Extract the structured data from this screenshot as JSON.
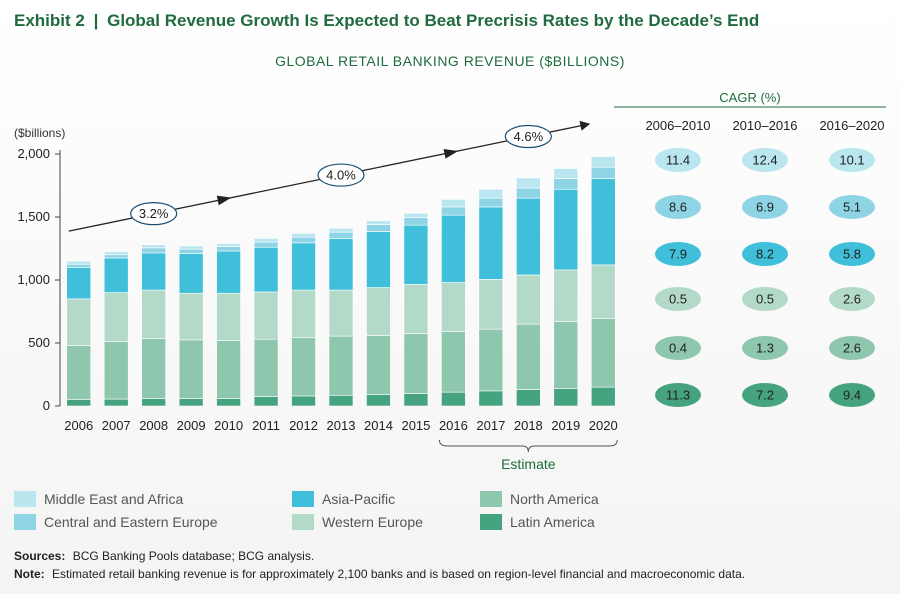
{
  "exhibit": {
    "label": "Exhibit 2",
    "separator": "|",
    "title": "Global Revenue Growth Is Expected to Beat Precrisis Rates by the Decade’s End"
  },
  "chart_title": "GLOBAL RETAIL BANKING REVENUE ($BILLIONS)",
  "colors": {
    "green_title": "#1f6b3d",
    "middle_east_africa": "#b9e6ef",
    "central_eastern_europe": "#8fd4e4",
    "asia_pacific": "#3fbfd9",
    "western_europe": "#b3d9c8",
    "north_america": "#8ec7ae",
    "latin_america": "#46a37f"
  },
  "chart_data": {
    "type": "bar",
    "stacked": true,
    "ylabel": "($billions)",
    "ylim": [
      0,
      2000
    ],
    "yticks": [
      0,
      500,
      1000,
      1500,
      2000
    ],
    "ytick_labels": [
      "0",
      "500",
      "1,000",
      "1,500",
      "2,000"
    ],
    "categories": [
      "2006",
      "2007",
      "2008",
      "2009",
      "2010",
      "2011",
      "2012",
      "2013",
      "2014",
      "2015",
      "2016",
      "2017",
      "2018",
      "2019",
      "2020"
    ],
    "estimate_label": "Estimate",
    "estimate_range": [
      "2016",
      "2020"
    ],
    "series": [
      {
        "name": "Latin America",
        "color_key": "latin_america",
        "values": [
          50,
          55,
          60,
          60,
          60,
          75,
          80,
          85,
          90,
          100,
          110,
          120,
          130,
          140,
          150
        ]
      },
      {
        "name": "North America",
        "color_key": "north_america",
        "values": [
          430,
          455,
          475,
          465,
          460,
          455,
          465,
          470,
          470,
          475,
          480,
          490,
          520,
          530,
          545
        ]
      },
      {
        "name": "Western Europe",
        "color_key": "western_europe",
        "values": [
          370,
          390,
          385,
          370,
          375,
          375,
          375,
          365,
          380,
          390,
          390,
          395,
          390,
          410,
          425
        ]
      },
      {
        "name": "Asia-Pacific",
        "color_key": "asia_pacific",
        "values": [
          250,
          275,
          295,
          315,
          335,
          355,
          375,
          410,
          445,
          470,
          535,
          575,
          610,
          640,
          685
        ]
      },
      {
        "name": "Central and Eastern Europe",
        "color_key": "central_eastern_europe",
        "values": [
          25,
          25,
          40,
          35,
          35,
          40,
          45,
          50,
          55,
          60,
          65,
          70,
          80,
          85,
          90
        ]
      },
      {
        "name": "Middle East and Africa",
        "color_key": "middle_east_africa",
        "values": [
          25,
          25,
          25,
          25,
          25,
          30,
          30,
          30,
          30,
          35,
          60,
          70,
          80,
          80,
          85
        ]
      }
    ],
    "trend_labels": [
      {
        "label": "3.2%",
        "from": "2006",
        "to": "2010"
      },
      {
        "label": "4.0%",
        "from": "2010",
        "to": "2016"
      },
      {
        "label": "4.6%",
        "from": "2016",
        "to": "2020"
      }
    ],
    "cagr_table": {
      "title": "CAGR (%)",
      "columns": [
        "2006–2010",
        "2010–2016",
        "2016–2020"
      ],
      "rows": [
        {
          "series": "Middle East and Africa",
          "color_key": "middle_east_africa",
          "values": [
            "11.4",
            "12.4",
            "10.1"
          ]
        },
        {
          "series": "Central and Eastern Europe",
          "color_key": "central_eastern_europe",
          "values": [
            "8.6",
            "6.9",
            "5.1"
          ]
        },
        {
          "series": "Asia-Pacific",
          "color_key": "asia_pacific",
          "values": [
            "7.9",
            "8.2",
            "5.8"
          ]
        },
        {
          "series": "Western Europe",
          "color_key": "western_europe",
          "values": [
            "0.5",
            "0.5",
            "2.6"
          ]
        },
        {
          "series": "North America",
          "color_key": "north_america",
          "values": [
            "0.4",
            "1.3",
            "2.6"
          ]
        },
        {
          "series": "Latin America",
          "color_key": "latin_america",
          "values": [
            "11.3",
            "7.2",
            "9.4"
          ]
        }
      ]
    },
    "legend": [
      {
        "name": "Middle East and Africa",
        "color_key": "middle_east_africa"
      },
      {
        "name": "Central and Eastern Europe",
        "color_key": "central_eastern_europe"
      },
      {
        "name": "Asia-Pacific",
        "color_key": "asia_pacific"
      },
      {
        "name": "Western Europe",
        "color_key": "western_europe"
      },
      {
        "name": "North America",
        "color_key": "north_america"
      },
      {
        "name": "Latin America",
        "color_key": "latin_america"
      }
    ]
  },
  "footer": {
    "sources_label": "Sources:",
    "sources_text": "BCG Banking Pools database; BCG analysis.",
    "note_label": "Note:",
    "note_text": "Estimated retail banking revenue is for approximately 2,100 banks and is based on region-level financial and macroeconomic data."
  }
}
